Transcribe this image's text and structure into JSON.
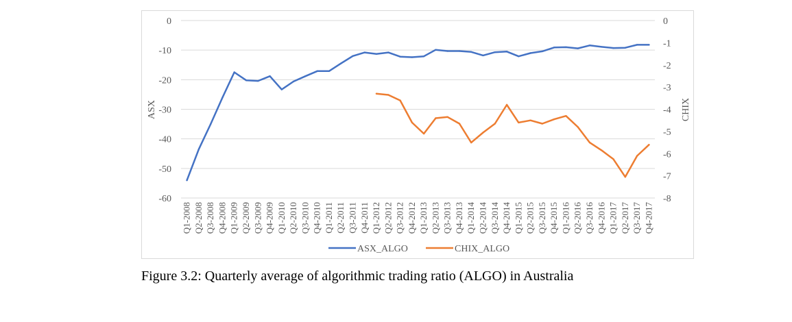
{
  "caption": "Figure 3.2: Quarterly average of algorithmic trading ratio (ALGO) in Australia",
  "chart_data": {
    "type": "line",
    "title": "",
    "categories": [
      "Q1-2008",
      "Q2-2008",
      "Q3-2008",
      "Q4-2008",
      "Q1-2009",
      "Q2-2009",
      "Q3-2009",
      "Q4-2009",
      "Q1-2010",
      "Q2-2010",
      "Q3-2010",
      "Q4-2010",
      "Q1-2011",
      "Q2-2011",
      "Q3-2011",
      "Q4-2011",
      "Q1-2012",
      "Q2-2012",
      "Q3-2012",
      "Q4-2012",
      "Q1-2013",
      "Q2-2013",
      "Q3-2013",
      "Q4-2013",
      "Q1-2014",
      "Q2-2014",
      "Q3-2014",
      "Q4-2014",
      "Q1-2015",
      "Q2-2015",
      "Q3-2015",
      "Q4-2015",
      "Q1-2016",
      "Q2-2016",
      "Q3-2016",
      "Q4-2016",
      "Q1-2017",
      "Q2-2017",
      "Q3-2017",
      "Q4-2017"
    ],
    "ylabel": "ASX",
    "y2label": "CHIX",
    "ylim": [
      -60,
      0
    ],
    "y2lim": [
      -8,
      0
    ],
    "yticks": [
      "0",
      "-10",
      "-20",
      "-30",
      "-40",
      "-50",
      "-60"
    ],
    "y2ticks": [
      "0",
      "-1",
      "-2",
      "-3",
      "-4",
      "-5",
      "-6",
      "-7",
      "-8"
    ],
    "grid": true,
    "legend_position": "bottom",
    "series": [
      {
        "name": "ASX_ALGO",
        "axis": "left",
        "color": "#4472c4",
        "values": [
          -54,
          -43.5,
          -35,
          -26,
          -17.5,
          -20.2,
          -20.4,
          -18.8,
          -23.3,
          -20.6,
          -18.8,
          -17.1,
          -17.1,
          -14.5,
          -12,
          -10.8,
          -11.3,
          -10.8,
          -12.2,
          -12.4,
          -12.1,
          -9.9,
          -10.3,
          -10.3,
          -10.6,
          -11.8,
          -10.7,
          -10.5,
          -12.1,
          -11,
          -10.4,
          -9.1,
          -9,
          -9.4,
          -8.4,
          -8.9,
          -9.3,
          -9.2,
          -8.2,
          -8.2
        ]
      },
      {
        "name": "CHIX_ALGO",
        "axis": "right",
        "color": "#ed7d31",
        "values": [
          null,
          null,
          null,
          null,
          null,
          null,
          null,
          null,
          null,
          null,
          null,
          null,
          null,
          null,
          null,
          null,
          -3.3,
          -3.35,
          -3.6,
          -4.6,
          -5.1,
          -4.4,
          -4.35,
          -4.65,
          -5.5,
          -5.05,
          -4.65,
          -3.8,
          -4.6,
          -4.5,
          -4.65,
          -4.45,
          -4.3,
          -4.8,
          -5.5,
          -5.85,
          -6.25,
          -7.05,
          -6.1,
          -5.6
        ]
      }
    ]
  }
}
